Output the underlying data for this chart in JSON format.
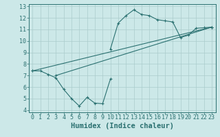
{
  "line1_x": [
    0,
    1,
    2,
    3,
    4,
    5,
    6,
    7,
    8,
    9,
    10
  ],
  "line1_y": [
    7.4,
    7.4,
    7.1,
    6.8,
    5.8,
    5.0,
    4.35,
    5.1,
    4.6,
    4.55,
    6.7
  ],
  "line2_x": [
    0,
    23
  ],
  "line2_y": [
    7.4,
    11.2
  ],
  "line3_x": [
    3,
    23
  ],
  "line3_y": [
    7.0,
    11.2
  ],
  "line4_x": [
    10,
    11,
    12,
    13,
    14,
    15,
    16,
    17,
    18,
    19,
    20,
    21,
    22,
    23
  ],
  "line4_y": [
    9.3,
    11.55,
    12.2,
    12.7,
    12.3,
    12.2,
    11.85,
    11.75,
    11.65,
    10.3,
    10.5,
    11.1,
    11.15,
    11.2
  ],
  "color": "#2a7070",
  "bg_color": "#cce8e8",
  "grid_color": "#aacccc",
  "xlabel": "Humidex (Indice chaleur)",
  "xlim": [
    -0.5,
    23.5
  ],
  "ylim": [
    3.8,
    13.2
  ],
  "xticks": [
    0,
    1,
    2,
    3,
    4,
    5,
    6,
    7,
    8,
    9,
    10,
    11,
    12,
    13,
    14,
    15,
    16,
    17,
    18,
    19,
    20,
    21,
    22,
    23
  ],
  "yticks": [
    4,
    5,
    6,
    7,
    8,
    9,
    10,
    11,
    12,
    13
  ],
  "xlabel_fontsize": 7.5,
  "tick_fontsize": 6.0
}
